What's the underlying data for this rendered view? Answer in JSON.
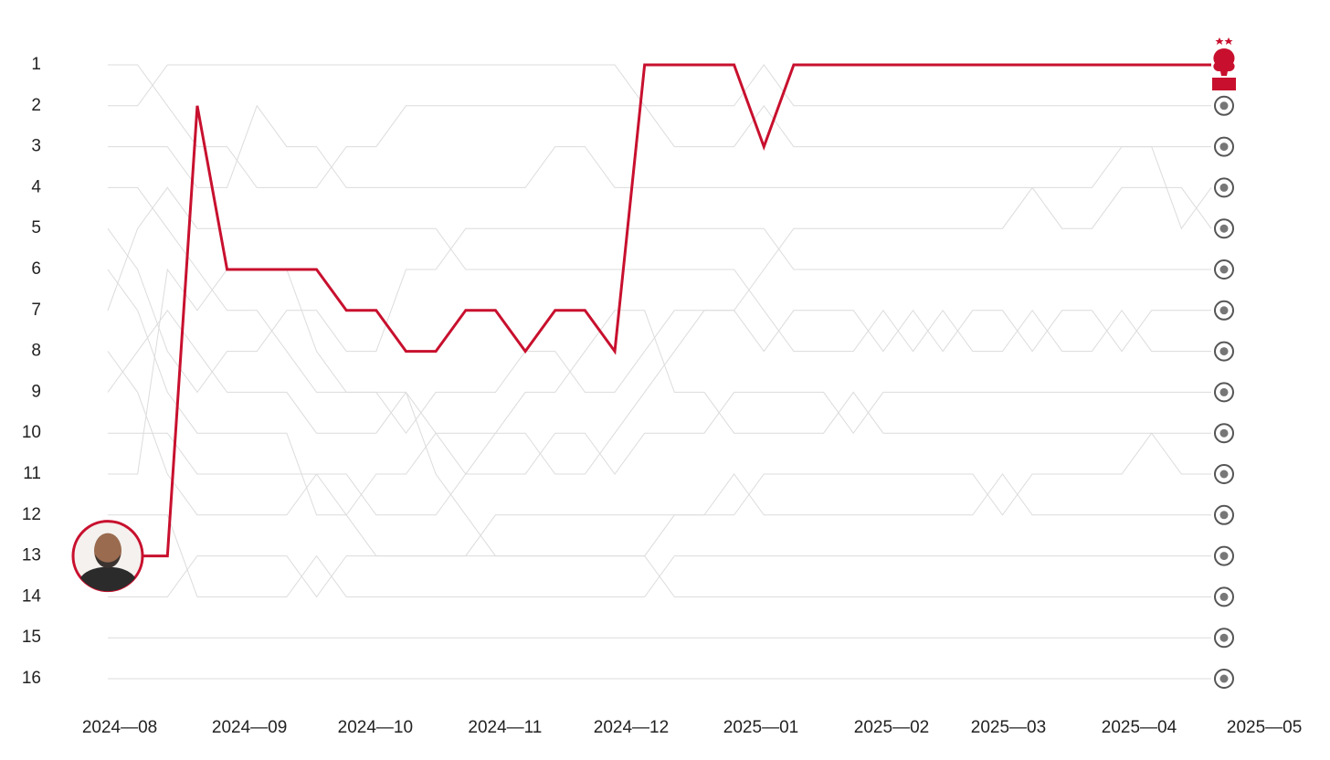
{
  "chart_data": {
    "type": "line",
    "y_inverted": true,
    "x": [
      1,
      2,
      3,
      4,
      5,
      6,
      7,
      8,
      9,
      10,
      11,
      12,
      13,
      14,
      15,
      16,
      17,
      18,
      19,
      20,
      21,
      22,
      23,
      24,
      25,
      26,
      27,
      28,
      29,
      30,
      31,
      32,
      33,
      34,
      35,
      36,
      37,
      38
    ],
    "xlim": [
      1,
      38
    ],
    "xticks": [
      {
        "value": 1.4,
        "label": "2024—08"
      },
      {
        "value": 5.75,
        "label": "2024—09"
      },
      {
        "value": 9.97,
        "label": "2024—10"
      },
      {
        "value": 14.32,
        "label": "2024—11"
      },
      {
        "value": 18.55,
        "label": "2024—12"
      },
      {
        "value": 22.9,
        "label": "2025—01"
      },
      {
        "value": 27.28,
        "label": "2025—02"
      },
      {
        "value": 31.2,
        "label": "2025—03"
      },
      {
        "value": 35.58,
        "label": "2025—04"
      },
      {
        "value": 39.78,
        "label": "2025—05"
      }
    ],
    "ylim": [
      0,
      17
    ],
    "yticks": [
      1,
      2,
      3,
      4,
      5,
      6,
      7,
      8,
      9,
      10,
      11,
      12,
      13,
      14,
      15,
      16
    ],
    "series": [
      {
        "color": "#dcdcdc",
        "values": [
          1,
          1,
          2,
          3,
          3,
          4,
          4,
          4,
          3,
          3,
          2,
          2,
          2,
          2,
          2,
          2,
          2,
          2,
          2,
          2,
          2,
          2,
          1,
          2,
          2,
          2,
          2,
          2,
          2,
          2,
          2,
          2,
          2,
          2,
          2,
          2,
          2,
          2
        ]
      },
      {
        "color": "#dcdcdc",
        "values": [
          2,
          2,
          1,
          1,
          1,
          1,
          1,
          1,
          1,
          1,
          1,
          1,
          1,
          1,
          1,
          1,
          1,
          1,
          2,
          3,
          3,
          3,
          2,
          3,
          3,
          3,
          3,
          3,
          3,
          3,
          3,
          3,
          3,
          3,
          3,
          3,
          3,
          3
        ]
      },
      {
        "color": "#dcdcdc",
        "values": [
          3,
          3,
          3,
          4,
          4,
          2,
          3,
          3,
          4,
          4,
          4,
          4,
          4,
          4,
          4,
          3,
          3,
          4,
          4,
          4,
          4,
          4,
          4,
          4,
          4,
          4,
          4,
          4,
          4,
          4,
          4,
          4,
          4,
          4,
          3,
          3,
          5,
          4
        ]
      },
      {
        "color": "#dcdcdc",
        "values": [
          4,
          4,
          5,
          6,
          7,
          7,
          8,
          9,
          9,
          9,
          10,
          9,
          9,
          9,
          8,
          8,
          9,
          9,
          8,
          7,
          7,
          7,
          6,
          5,
          5,
          5,
          5,
          5,
          5,
          5,
          5,
          4,
          5,
          5,
          4,
          4,
          4,
          5
        ]
      },
      {
        "color": "#dcdcdc",
        "values": [
          5,
          6,
          8,
          9,
          8,
          8,
          7,
          7,
          8,
          8,
          6,
          6,
          5,
          5,
          5,
          5,
          5,
          5,
          5,
          5,
          5,
          5,
          5,
          6,
          6,
          6,
          6,
          6,
          6,
          6,
          6,
          6,
          6,
          6,
          6,
          6,
          6,
          6
        ]
      },
      {
        "color": "#dcdcdc",
        "values": [
          6,
          7,
          9,
          10,
          10,
          10,
          10,
          12,
          12,
          11,
          11,
          10,
          10,
          10,
          10,
          11,
          11,
          10,
          9,
          8,
          7,
          7,
          8,
          7,
          7,
          7,
          8,
          7,
          8,
          7,
          7,
          8,
          7,
          7,
          8,
          7,
          7,
          7
        ]
      },
      {
        "color": "#dcdcdc",
        "values": [
          7,
          5,
          4,
          5,
          5,
          5,
          5,
          5,
          5,
          5,
          5,
          5,
          6,
          6,
          6,
          6,
          6,
          6,
          6,
          6,
          6,
          6,
          7,
          8,
          8,
          8,
          7,
          8,
          7,
          8,
          8,
          7,
          8,
          8,
          7,
          8,
          8,
          8
        ]
      },
      {
        "color": "#dcdcdc",
        "values": [
          8,
          9,
          11,
          12,
          12,
          12,
          12,
          11,
          11,
          12,
          12,
          12,
          11,
          11,
          11,
          10,
          10,
          11,
          10,
          10,
          10,
          9,
          9,
          9,
          9,
          10,
          9,
          9,
          9,
          9,
          9,
          9,
          9,
          9,
          9,
          9,
          9,
          9
        ]
      },
      {
        "color": "#dcdcdc",
        "values": [
          9,
          8,
          7,
          8,
          9,
          9,
          9,
          10,
          10,
          10,
          9,
          10,
          11,
          10,
          9,
          9,
          8,
          7,
          7,
          9,
          9,
          10,
          10,
          10,
          10,
          9,
          10,
          10,
          10,
          10,
          10,
          10,
          10,
          10,
          10,
          10,
          10,
          10
        ]
      },
      {
        "color": "#dcdcdc",
        "values": [
          10,
          10,
          10,
          11,
          11,
          11,
          11,
          11,
          12,
          13,
          13,
          13,
          13,
          12,
          12,
          12,
          12,
          12,
          12,
          12,
          12,
          12,
          11,
          11,
          11,
          11,
          11,
          11,
          11,
          11,
          12,
          11,
          11,
          11,
          11,
          10,
          11,
          11
        ]
      },
      {
        "color": "#dcdcdc",
        "values": [
          11,
          11,
          6,
          7,
          6,
          6,
          6,
          8,
          9,
          9,
          9,
          11,
          12,
          13,
          13,
          13,
          13,
          13,
          13,
          12,
          12,
          11,
          12,
          12,
          12,
          12,
          12,
          12,
          12,
          12,
          11,
          12,
          12,
          12,
          12,
          12,
          12,
          12
        ]
      },
      {
        "color": "#dcdcdc",
        "values": [
          12,
          12,
          12,
          14,
          14,
          14,
          14,
          13,
          14,
          14,
          14,
          14,
          14,
          14,
          14,
          14,
          14,
          14,
          14,
          13,
          13,
          13,
          13,
          13,
          13,
          13,
          13,
          13,
          13,
          13,
          13,
          13,
          13,
          13,
          13,
          13,
          13,
          13
        ]
      },
      {
        "color": "#dcdcdc",
        "values": [
          14,
          14,
          14,
          13,
          13,
          13,
          13,
          14,
          13,
          13,
          13,
          13,
          13,
          13,
          13,
          13,
          13,
          13,
          13,
          14,
          14,
          14,
          14,
          14,
          14,
          14,
          14,
          14,
          14,
          14,
          14,
          14,
          14,
          14,
          14,
          14,
          14,
          14
        ]
      },
      {
        "color": "#dcdcdc",
        "values": [
          15,
          15,
          15,
          15,
          15,
          15,
          15,
          15,
          15,
          15,
          15,
          15,
          15,
          15,
          15,
          15,
          15,
          15,
          15,
          15,
          15,
          15,
          15,
          15,
          15,
          15,
          15,
          15,
          15,
          15,
          15,
          15,
          15,
          15,
          15,
          15,
          15,
          15
        ]
      },
      {
        "color": "#dcdcdc",
        "values": [
          16,
          16,
          16,
          16,
          16,
          16,
          16,
          16,
          16,
          16,
          16,
          16,
          16,
          16,
          16,
          16,
          16,
          16,
          16,
          16,
          16,
          16,
          16,
          16,
          16,
          16,
          16,
          16,
          16,
          16,
          16,
          16,
          16,
          16,
          16,
          16,
          16,
          16
        ]
      },
      {
        "color": "#c8102e",
        "values": [
          13,
          13,
          13,
          2,
          6,
          6,
          6,
          6,
          7,
          7,
          8,
          8,
          7,
          7,
          8,
          7,
          7,
          8,
          1,
          1,
          1,
          1,
          3,
          1,
          1,
          1,
          1,
          1,
          1,
          1,
          1,
          1,
          1,
          1,
          1,
          1,
          1,
          1
        ]
      }
    ]
  }
}
